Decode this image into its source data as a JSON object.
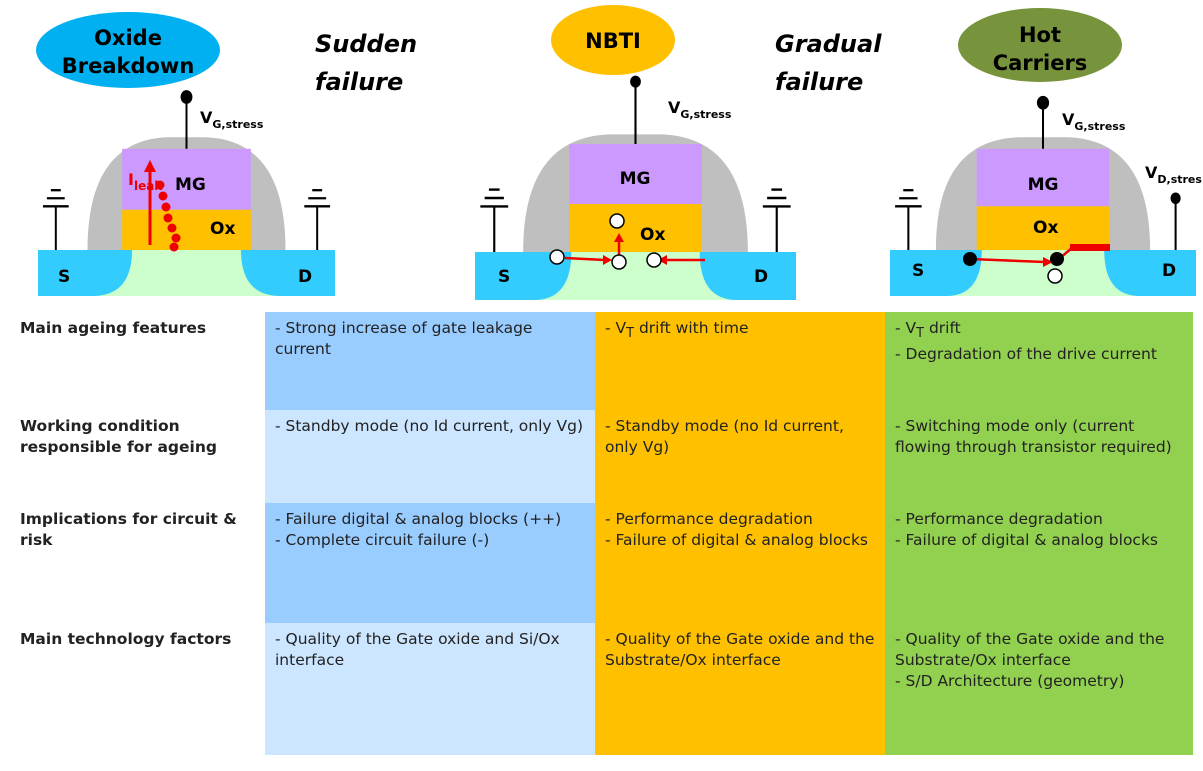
{
  "top": {
    "panels": [
      {
        "title_lines": [
          "Oxide",
          "Breakdown"
        ],
        "failure_lines": [
          "Sudden",
          "failure"
        ],
        "gate_voltage": {
          "symbol": "V",
          "subscript": "G,stress"
        },
        "current": {
          "symbol": "I",
          "subscript": "leak"
        },
        "gate": "MG",
        "oxide": "Ox",
        "source": "S",
        "drain": "D"
      },
      {
        "title_lines": [
          "NBTI"
        ],
        "failure_lines": [
          "Gradual",
          "failure"
        ],
        "gate_voltage": {
          "symbol": "V",
          "subscript": "G,stress"
        },
        "gate": "MG",
        "oxide": "Ox",
        "source": "S",
        "drain": "D"
      },
      {
        "title_lines": [
          "Hot",
          "Carriers"
        ],
        "gate_voltage": {
          "symbol": "V",
          "subscript": "G,stress"
        },
        "drain_voltage": {
          "symbol": "V",
          "subscript": "D,stres"
        },
        "gate": "MG",
        "oxide": "Ox",
        "source": "S",
        "drain": "D"
      }
    ]
  },
  "table": {
    "rows": [
      {
        "label": "Main ageing features",
        "cells": [
          [
            "- Strong increase of gate leakage current"
          ],
          [
            [
              {
                "text": "- V"
              },
              {
                "sub": "T"
              },
              {
                "text": " drift with time"
              }
            ]
          ],
          [
            [
              {
                "text": "- V"
              },
              {
                "sub": "T"
              },
              {
                "text": " drift"
              }
            ],
            "- Degradation of the drive current"
          ]
        ]
      },
      {
        "label": "Working condition responsible for ageing",
        "cells": [
          [
            "- Standby mode (no Id current, only Vg)"
          ],
          [
            "- Standby mode (no Id current, only Vg)"
          ],
          [
            "- Switching mode only (current flowing through transistor required)"
          ]
        ]
      },
      {
        "label": "Implications for circuit & risk",
        "cells": [
          [
            "- Failure digital & analog blocks (++)",
            "- Complete circuit failure (-)"
          ],
          [
            "- Performance degradation",
            "- Failure of digital & analog blocks"
          ],
          [
            "- Performance degradation",
            "- Failure of digital & analog blocks"
          ]
        ]
      },
      {
        "label": "Main technology factors",
        "cells": [
          [
            "- Quality of the Gate oxide and Si/Ox interface"
          ],
          [
            "- Quality of the Gate oxide and the Substrate/Ox interface"
          ],
          [
            "- Quality of the Gate oxide and the Substrate/Ox interface",
            "- S/D Architecture (geometry)"
          ]
        ]
      }
    ]
  }
}
